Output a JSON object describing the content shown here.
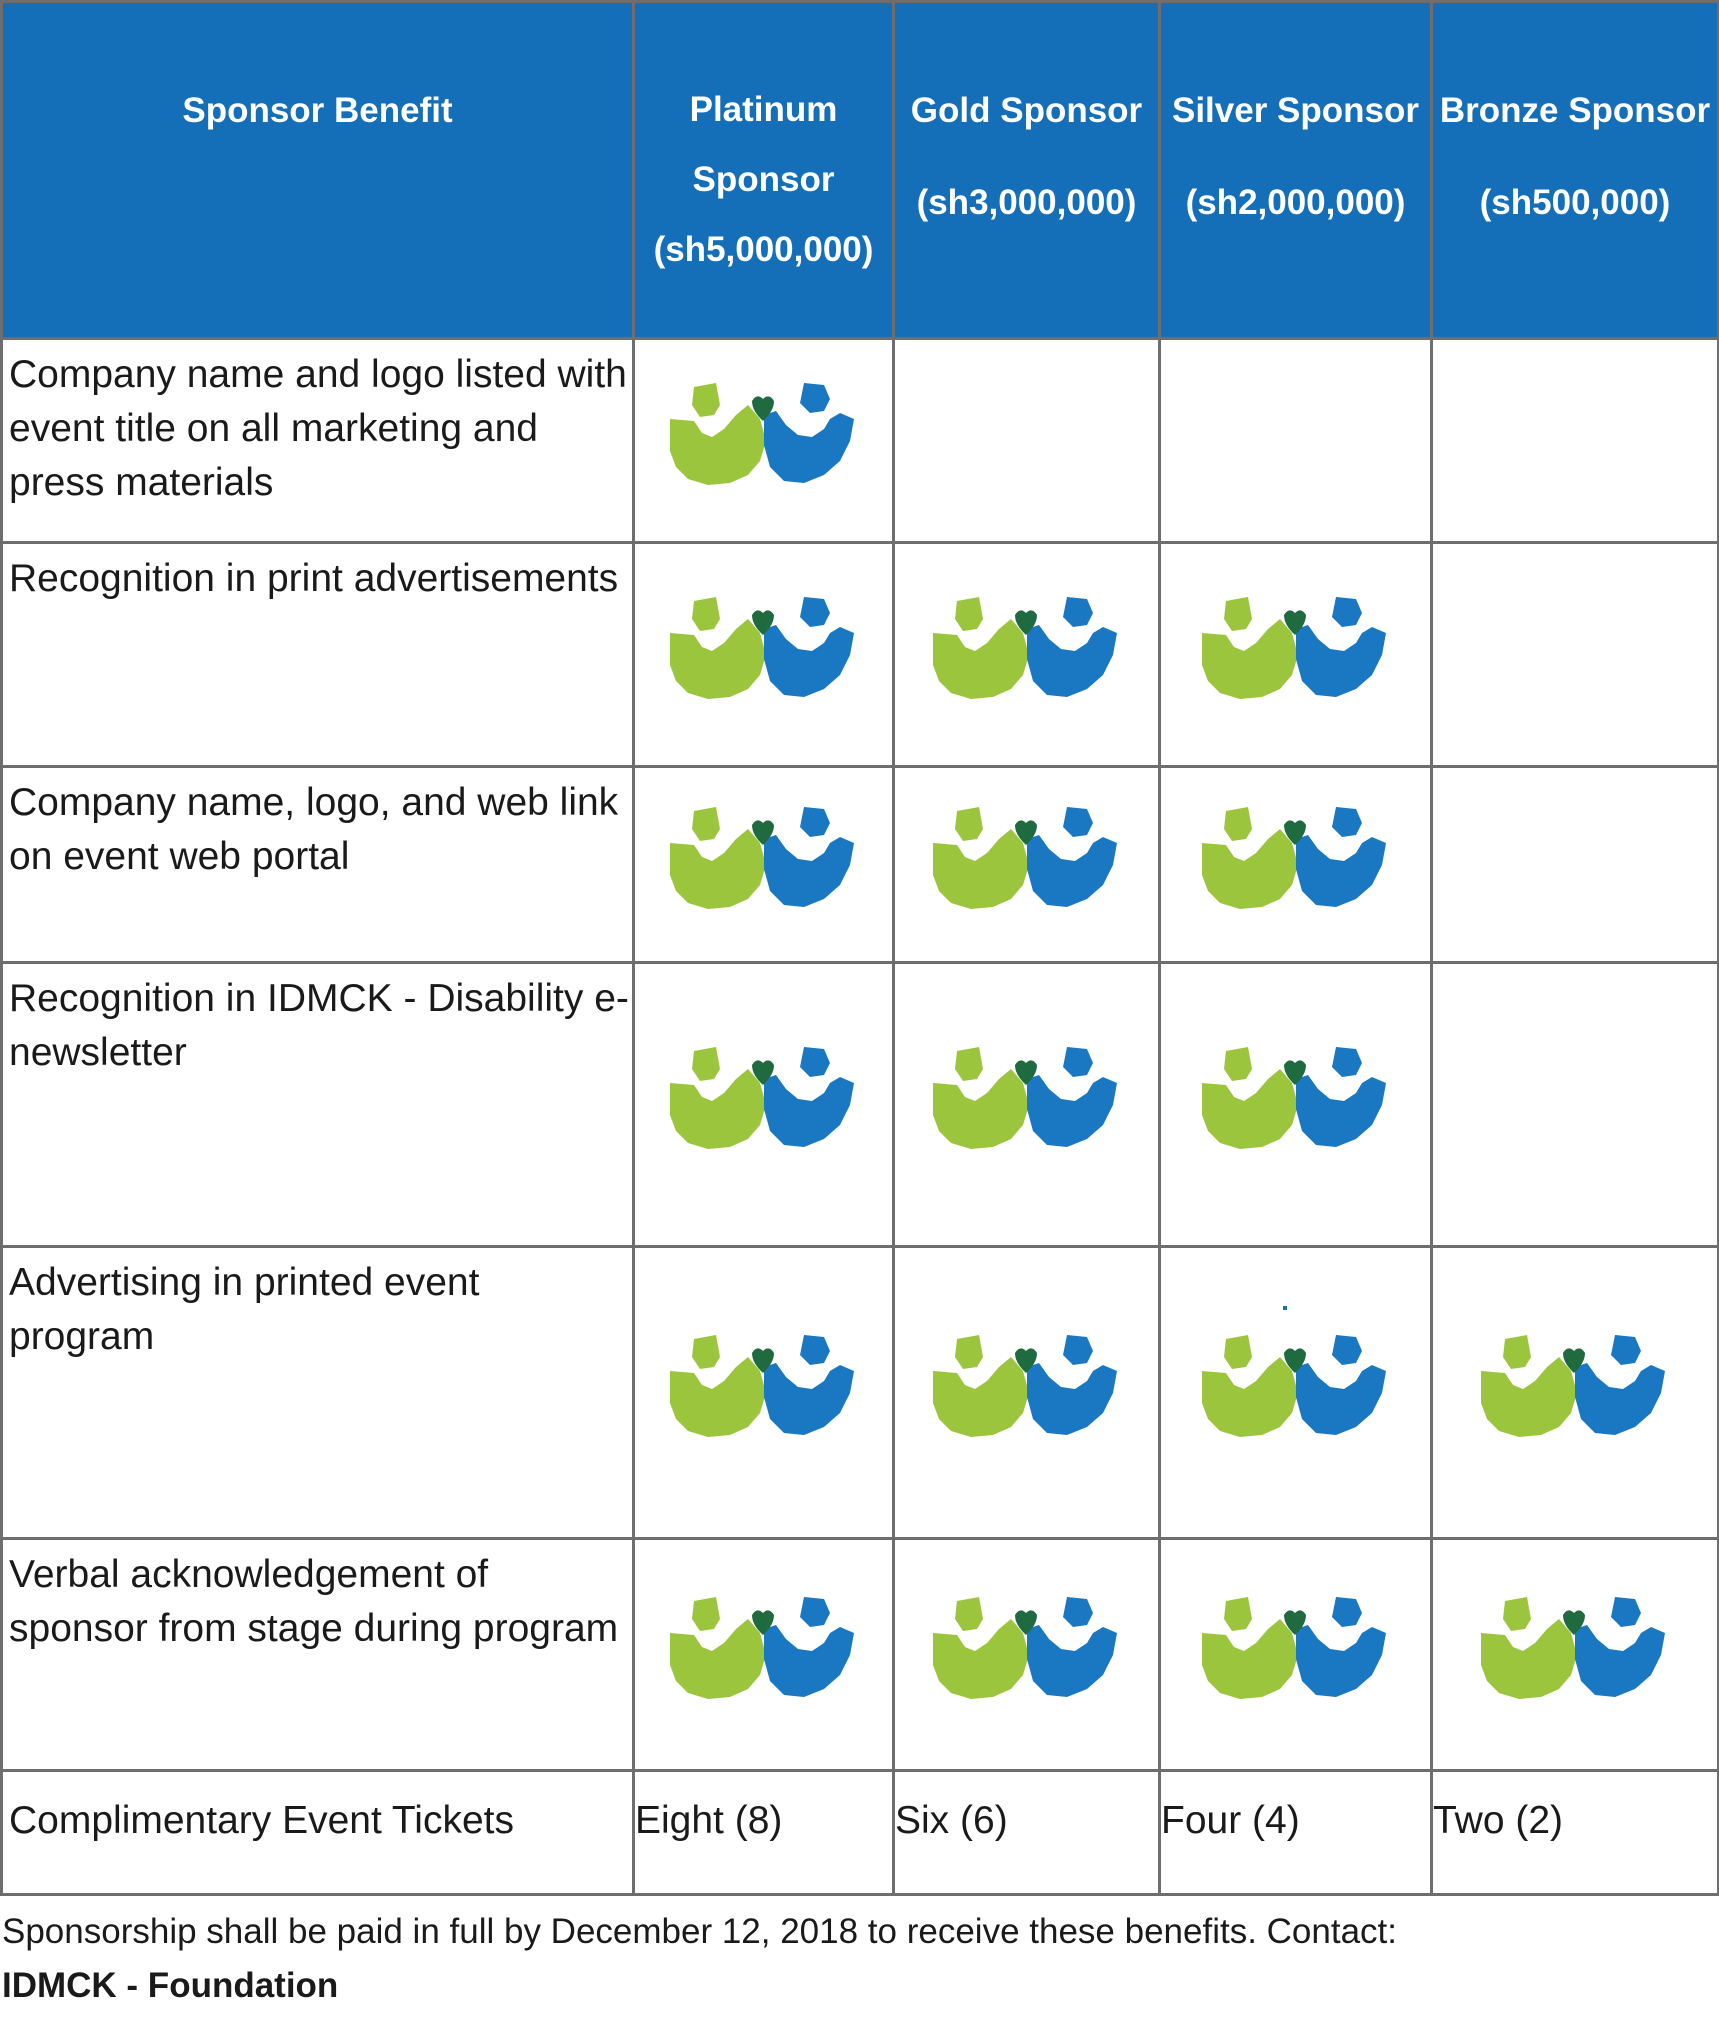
{
  "table": {
    "benefit_header": "Sponsor Benefit",
    "tiers": [
      {
        "key": "platinum",
        "name": "Platinum Sponsor",
        "name_lines": [
          "Platinum",
          "Sponsor"
        ],
        "amount": "(sh5,000,000)"
      },
      {
        "key": "gold",
        "name": "Gold Sponsor",
        "amount": "(sh3,000,000)"
      },
      {
        "key": "silver",
        "name": "Silver Sponsor",
        "amount": "(sh2,000,000)"
      },
      {
        "key": "bronze",
        "name": "Bronze Sponsor",
        "amount": "(sh500,000)"
      }
    ],
    "rows": [
      {
        "benefit": "Company name and logo listed with event title on all marketing and press materials",
        "included": [
          true,
          false,
          false,
          false
        ]
      },
      {
        "benefit": "Recognition in print advertisements",
        "included": [
          true,
          true,
          true,
          false
        ]
      },
      {
        "benefit": "Company name, logo, and web link on event web portal",
        "included": [
          true,
          true,
          true,
          false
        ]
      },
      {
        "benefit": "Recognition in IDMCK - Disability e-newsletter",
        "included": [
          true,
          true,
          true,
          false
        ]
      },
      {
        "benefit": "Advertising in printed event program",
        "included": [
          true,
          true,
          true,
          true
        ]
      },
      {
        "benefit": "Verbal acknowledgement of sponsor from stage during program",
        "included": [
          true,
          true,
          true,
          true
        ]
      },
      {
        "benefit": "Complimentary Event Tickets",
        "values": [
          "Eight (8)",
          "Six (6)",
          "Four (4)",
          "Two (2)"
        ]
      }
    ]
  },
  "marker_icon": "idmck-logo-icon",
  "colors": {
    "header_bg": "#156fb8",
    "logo_green": "#9bc53d",
    "logo_blue": "#1a78c2",
    "logo_heart": "#1f6b3f"
  },
  "footer": {
    "note": "Sponsorship shall be paid in full by December 12, 2018 to receive these benefits. Contact:",
    "org": "IDMCK - Foundation"
  }
}
